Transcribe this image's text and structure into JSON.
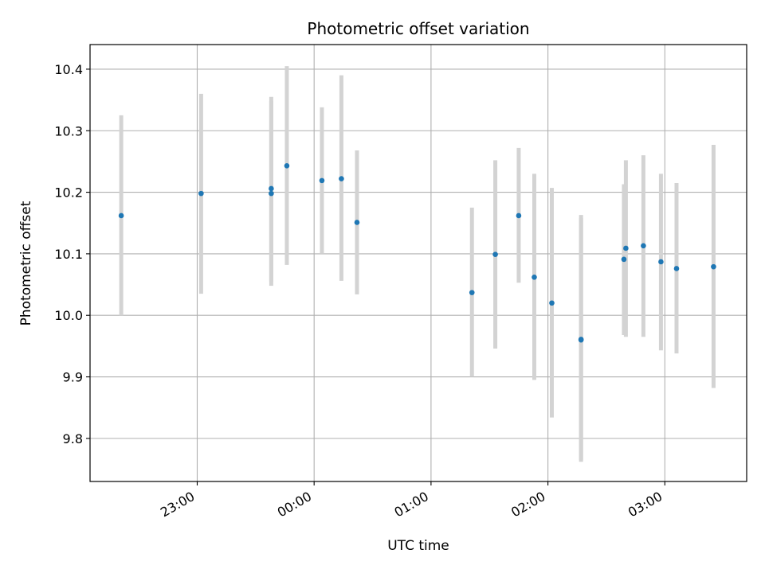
{
  "chart_data": {
    "type": "scatter",
    "title": "Photometric offset variation",
    "xlabel": "UTC time",
    "ylabel": "Photometric offset",
    "ylim": [
      9.73,
      10.44
    ],
    "xlim": [
      "22:05",
      "03:42"
    ],
    "grid": true,
    "x_ticks": [
      "23:00",
      "00:00",
      "01:00",
      "02:00",
      "03:00"
    ],
    "y_ticks": [
      "9.8",
      "9.9",
      "10.0",
      "10.1",
      "10.2",
      "10.3",
      "10.4"
    ],
    "colors": {
      "point": "#1f77b4",
      "error_bar": "#d3d3d3",
      "grid": "#b0b0b0"
    },
    "series": [
      {
        "points": [
          {
            "x": "22:21",
            "y": 10.162,
            "y_low": 10.0,
            "y_high": 10.325
          },
          {
            "x": "23:02",
            "y": 10.198,
            "y_low": 10.035,
            "y_high": 10.36
          },
          {
            "x": "23:38",
            "y": 10.198,
            "y_low": 10.048,
            "y_high": 10.348
          },
          {
            "x": "23:38",
            "y": 10.206,
            "y_low": 10.055,
            "y_high": 10.355
          },
          {
            "x": "23:46",
            "y": 10.243,
            "y_low": 10.082,
            "y_high": 10.405
          },
          {
            "x": "00:04",
            "y": 10.219,
            "y_low": 10.1,
            "y_high": 10.338
          },
          {
            "x": "00:14",
            "y": 10.222,
            "y_low": 10.056,
            "y_high": 10.39
          },
          {
            "x": "00:22",
            "y": 10.151,
            "y_low": 10.034,
            "y_high": 10.268
          },
          {
            "x": "01:21",
            "y": 10.037,
            "y_low": 9.9,
            "y_high": 10.175
          },
          {
            "x": "01:33",
            "y": 10.099,
            "y_low": 9.946,
            "y_high": 10.252
          },
          {
            "x": "01:45",
            "y": 10.162,
            "y_low": 10.053,
            "y_high": 10.272
          },
          {
            "x": "01:53",
            "y": 10.062,
            "y_low": 9.895,
            "y_high": 10.23
          },
          {
            "x": "02:02",
            "y": 10.02,
            "y_low": 9.834,
            "y_high": 10.207
          },
          {
            "x": "02:17",
            "y": 9.961,
            "y_low": 9.762,
            "y_high": 10.163
          },
          {
            "x": "02:17",
            "y": 9.96,
            "y_low": 9.765,
            "y_high": 10.158
          },
          {
            "x": "02:39",
            "y": 10.091,
            "y_low": 9.968,
            "y_high": 10.213
          },
          {
            "x": "02:40",
            "y": 10.109,
            "y_low": 9.965,
            "y_high": 10.252
          },
          {
            "x": "02:49",
            "y": 10.113,
            "y_low": 9.965,
            "y_high": 10.26
          },
          {
            "x": "02:58",
            "y": 10.087,
            "y_low": 9.943,
            "y_high": 10.23
          },
          {
            "x": "03:06",
            "y": 10.076,
            "y_low": 9.938,
            "y_high": 10.215
          },
          {
            "x": "03:25",
            "y": 10.079,
            "y_low": 9.882,
            "y_high": 10.277
          }
        ]
      }
    ]
  }
}
